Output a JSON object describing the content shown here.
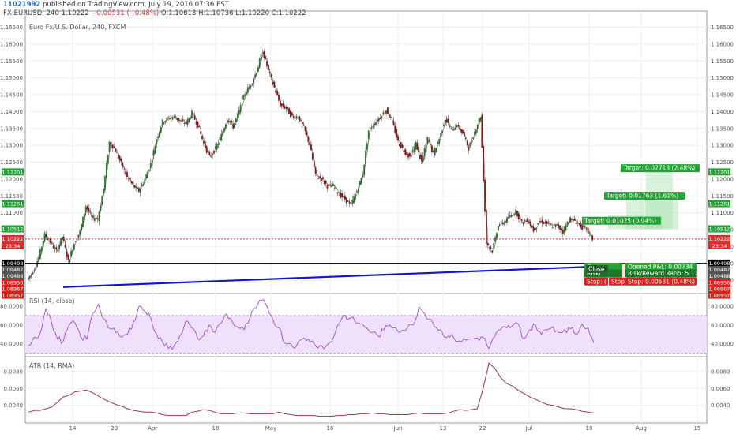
{
  "header": {
    "user": "11021992",
    "published": "published on TradingView.com, July 19, 2016 07:36 EST",
    "symbol": "FX:EURUSD, 240",
    "last": "1.10222",
    "change": "−0.00531 (−0.48%)",
    "open": "O:1.10618",
    "high": "H:1.10736",
    "low": "L:1.10220",
    "close": "C:1.10222"
  },
  "colors": {
    "up": "#2e7d32",
    "down": "#8b1a1a",
    "trend": "#1414c8",
    "level": "#000000",
    "last": "#d32f2f",
    "rsi": "#9c4fd2",
    "atr": "#9b3b3b",
    "target": "#23a336",
    "stop": "#e01e1e"
  },
  "chart_data": [
    {
      "type": "line",
      "title": "Euro Fx/U.S. Dollar, 240, FXCM",
      "x_ticks": [
        "14",
        "23",
        "Apr",
        "18",
        "May",
        "16",
        "Jun",
        "13",
        "22",
        "Jul",
        "18",
        "Aug",
        "15"
      ],
      "ylim": [
        1.087,
        1.167
      ],
      "y_ticks": [
        "1.16500",
        "1.16000",
        "1.15500",
        "1.15000",
        "1.14500",
        "1.14000",
        "1.13500",
        "1.13000",
        "1.12500",
        "1.12000",
        "1.11500",
        "1.11000",
        "1.10500",
        "1.10000",
        "1.09500",
        "1.09000"
      ],
      "series": [
        {
          "values": [
            1.0902,
            1.0925,
            1.0968,
            1.1035,
            1.1012,
            1.0985,
            1.103,
            1.0955,
            1.101,
            1.1045,
            1.112,
            1.1085,
            1.1082,
            1.1172,
            1.131,
            1.1285,
            1.1245,
            1.1205,
            1.118,
            1.1165,
            1.12,
            1.1245,
            1.132,
            1.137,
            1.138,
            1.1385,
            1.1372,
            1.1365,
            1.1395,
            1.136,
            1.1305,
            1.1265,
            1.129,
            1.133,
            1.138,
            1.1355,
            1.14,
            1.1455,
            1.148,
            1.152,
            1.158,
            1.152,
            1.147,
            1.142,
            1.141,
            1.1385,
            1.1385,
            1.1352,
            1.1302,
            1.121,
            1.12,
            1.118,
            1.118,
            1.1155,
            1.114,
            1.1125,
            1.1165,
            1.1215,
            1.1345,
            1.1365,
            1.1385,
            1.1405,
            1.137,
            1.131,
            1.1285,
            1.1265,
            1.1305,
            1.125,
            1.132,
            1.1275,
            1.132,
            1.138,
            1.1345,
            1.136,
            1.1335,
            1.1292,
            1.134,
            1.1388,
            1.101,
            1.0988,
            1.1065,
            1.1072,
            1.109,
            1.1105,
            1.107,
            1.108,
            1.1048,
            1.1075,
            1.107,
            1.1062,
            1.1062,
            1.1045,
            1.108,
            1.1077,
            1.106,
            1.105,
            1.1022
          ]
        }
      ],
      "annotations": [
        "Target: 0.02713 (2.48%)",
        "Target: 0.01763 (1.61%)",
        "Target: 0.01025 (0.94%)",
        "Opened P&L: 0.00734",
        "Risk/Reward Ratio: 5.11",
        "Stop: 0.00531 (0.48%)",
        "Open",
        "Risk/",
        "Stop: (",
        "Stop",
        "Close"
      ]
    },
    {
      "type": "line",
      "title": "RSI (14, close)",
      "ylim": [
        28,
        90
      ],
      "y_ticks": [
        "80.0000",
        "60.0000",
        "40.0000"
      ],
      "series": [
        {
          "values": [
            38,
            47,
            51,
            77,
            62,
            45,
            43,
            60,
            62,
            47,
            45,
            72,
            82,
            66,
            56,
            52,
            47,
            50,
            63,
            80,
            75,
            67,
            50,
            42,
            35,
            38,
            49,
            64,
            57,
            46,
            48,
            60,
            52,
            62,
            72,
            63,
            57,
            55,
            67,
            78,
            86,
            79,
            65,
            57,
            41,
            40,
            38,
            45,
            45,
            40,
            38,
            37,
            42,
            59,
            70,
            67,
            64,
            61,
            57,
            52,
            48,
            55,
            60,
            57,
            54,
            57,
            60,
            79,
            72,
            66,
            57,
            52,
            48,
            46,
            43,
            44,
            45,
            46,
            47,
            35,
            48,
            55,
            57,
            59,
            61,
            45,
            55,
            60,
            50,
            55,
            58,
            52,
            55,
            56,
            50,
            61,
            57,
            41
          ]
        }
      ]
    },
    {
      "type": "line",
      "title": "ATR (14, RMA)",
      "ylim": [
        0.0022,
        0.0092
      ],
      "y_ticks": [
        "0.0080",
        "0.0060",
        "0.0040"
      ],
      "series": [
        {
          "values": [
            0.0032,
            0.0034,
            0.0034,
            0.0036,
            0.0038,
            0.0044,
            0.005,
            0.0052,
            0.0056,
            0.0057,
            0.0058,
            0.0055,
            0.0051,
            0.0047,
            0.0044,
            0.0041,
            0.0039,
            0.0036,
            0.0034,
            0.0033,
            0.0032,
            0.0032,
            0.0031,
            0.0029,
            0.0028,
            0.0028,
            0.0028,
            0.0028,
            0.0032,
            0.0033,
            0.0035,
            0.0034,
            0.0032,
            0.003,
            0.003,
            0.003,
            0.0031,
            0.0031,
            0.003,
            0.003,
            0.003,
            0.003,
            0.003,
            0.0032,
            0.003,
            0.0029,
            0.0028,
            0.0028,
            0.0028,
            0.0028,
            0.0027,
            0.0027,
            0.0027,
            0.0028,
            0.0028,
            0.0029,
            0.0029,
            0.003,
            0.003,
            0.0031,
            0.003,
            0.003,
            0.0029,
            0.0029,
            0.0029,
            0.0029,
            0.003,
            0.0031,
            0.003,
            0.003,
            0.003,
            0.003,
            0.0031,
            0.0033,
            0.0035,
            0.0034,
            0.0035,
            0.0036,
            0.006,
            0.009,
            0.0084,
            0.0073,
            0.0066,
            0.0063,
            0.0058,
            0.0054,
            0.005,
            0.0047,
            0.0044,
            0.0041,
            0.004,
            0.0038,
            0.0036,
            0.0036,
            0.0035,
            0.0033,
            0.0032,
            0.0031
          ]
        }
      ]
    }
  ],
  "axis_left_labels": {
    "green": [
      "1.12201",
      "1.11261",
      "1.10512"
    ],
    "red_last": [
      "1.10222",
      "23:34"
    ],
    "mid": [
      "1.09498",
      "1.09487",
      "1.09488",
      "1.09479"
    ],
    "red_low": [
      "1.08956",
      "1.08967",
      "1.08957"
    ]
  },
  "axis_right_labels": {
    "green": [
      "1.12201",
      "1.11261",
      "1.10512"
    ],
    "red_last": [
      "1.10222",
      "23:34"
    ],
    "mid": [
      "1.09498",
      "1.09487",
      "1.09488",
      "1.09479"
    ],
    "red_low": [
      "1.08956",
      "1.08967",
      "1.08957"
    ]
  }
}
